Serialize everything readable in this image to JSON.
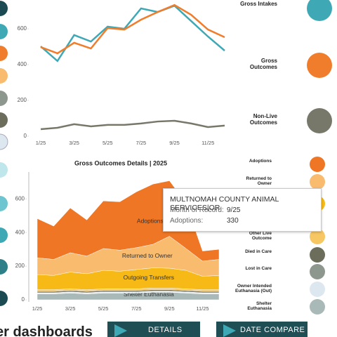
{
  "chart_data": [
    {
      "type": "line",
      "categories": [
        "1/25",
        null,
        "3/25",
        null,
        "5/25",
        null,
        "7/25",
        null,
        "9/25",
        null,
        "11/25",
        null
      ],
      "series": [
        {
          "name": "Gross Intakes",
          "color": "#3fa8b5",
          "values": [
            502,
            420,
            565,
            529,
            612,
            600,
            714,
            694,
            729,
            643,
            557,
            478
          ]
        },
        {
          "name": "Gross Outcomes",
          "color": "#f07d2c",
          "values": [
            498,
            463,
            522,
            490,
            604,
            596,
            651,
            694,
            733,
            678,
            596,
            553
          ]
        },
        {
          "name": "Non-Live Outcomes",
          "color": "#77776a",
          "values": [
            39,
            47,
            67,
            55,
            63,
            63,
            71,
            82,
            86,
            71,
            51,
            59
          ]
        }
      ],
      "ylim": [
        -8,
        761
      ],
      "yticks": [
        0,
        200,
        400,
        600
      ],
      "grid": false
    },
    {
      "type": "area",
      "title": "Gross Outcomes Details | 2025",
      "categories": [
        "1/25",
        null,
        "3/25",
        null,
        "5/25",
        null,
        "7/25",
        null,
        "9/25",
        null,
        "11/25",
        null
      ],
      "series": [
        {
          "name": "Shelter Euthanasia",
          "color": "#a9b9b7",
          "values": [
            35,
            35,
            40,
            35,
            40,
            40,
            40,
            45,
            45,
            40,
            35,
            35
          ]
        },
        {
          "name": "Owner Intended Euthanasia (Out)",
          "color": "#dde7f0",
          "values": [
            5,
            5,
            5,
            5,
            5,
            5,
            5,
            5,
            5,
            5,
            5,
            5
          ]
        },
        {
          "name": "Lost in Care",
          "color": "#8e978d",
          "values": [
            2,
            2,
            2,
            2,
            2,
            2,
            2,
            2,
            2,
            2,
            2,
            2
          ]
        },
        {
          "name": "Died in Care",
          "color": "#6d6d5c",
          "values": [
            8,
            8,
            8,
            8,
            8,
            8,
            8,
            8,
            8,
            8,
            8,
            8
          ]
        },
        {
          "name": "Other Live Outcome",
          "color": "#f7c764",
          "values": [
            10,
            10,
            10,
            10,
            10,
            10,
            10,
            10,
            10,
            10,
            10,
            10
          ]
        },
        {
          "name": "Outgoing Transfers",
          "color": "#f6b915",
          "values": [
            90,
            85,
            100,
            95,
            110,
            105,
            115,
            120,
            118,
            110,
            80,
            85
          ]
        },
        {
          "name": "Returned to Owner",
          "color": "#f9bb6e",
          "values": [
            100,
            95,
            115,
            105,
            130,
            125,
            130,
            140,
            190,
            130,
            90,
            95
          ]
        },
        {
          "name": "Adoptions",
          "color": "#ee7624",
          "values": [
            233,
            198,
            266,
            215,
            283,
            288,
            332,
            358,
            330,
            270,
            60,
            60
          ]
        }
      ],
      "ylim": [
        0,
        760
      ],
      "yticks": [
        0,
        200,
        400,
        600
      ],
      "grid": false
    }
  ],
  "tooltip": {
    "title": "MULTNOMAH COUNTY ANIMAL SERVICES|OR",
    "month_label": "Month of Record:",
    "value_label": "Adoptions:"
  },
  "footer": {
    "heading": "er dashboards",
    "buttons": [
      "DETAILS",
      "DATE COMPARE"
    ]
  }
}
